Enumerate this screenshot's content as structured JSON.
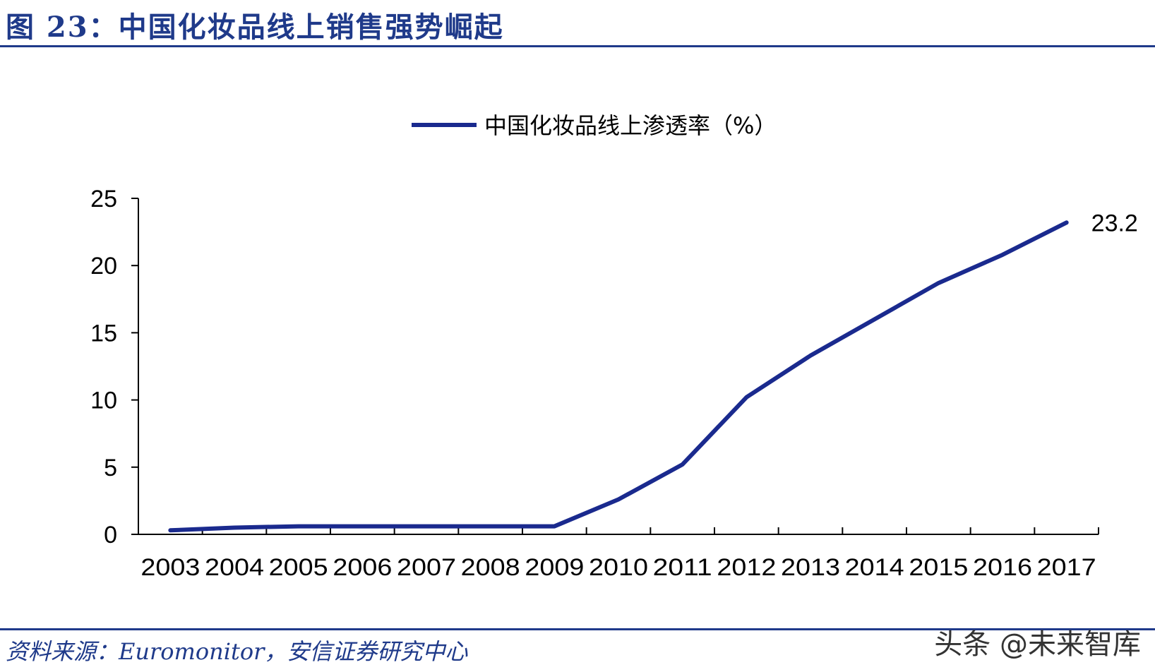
{
  "header": {
    "figure_title": "图 23：中国化妆品线上销售强势崛起"
  },
  "footer": {
    "source": "资料来源：Euromonitor，安信证券研究中心",
    "watermark": "头条 @未来智库"
  },
  "colors": {
    "accent": "#1f3a8a",
    "series": "#1a2a8e"
  },
  "chart_data": {
    "type": "line",
    "title": "",
    "xlabel": "",
    "ylabel": "",
    "legend_position": "top",
    "grid": false,
    "x": [
      "2003",
      "2004",
      "2005",
      "2006",
      "2007",
      "2008",
      "2009",
      "2010",
      "2011",
      "2012",
      "2013",
      "2014",
      "2015",
      "2016",
      "2017"
    ],
    "ylim": [
      0,
      25
    ],
    "yticks": [
      0,
      5,
      10,
      15,
      20,
      25
    ],
    "series": [
      {
        "name": "中国化妆品线上渗透率（%）",
        "values": [
          0.3,
          0.5,
          0.6,
          0.6,
          0.6,
          0.6,
          0.6,
          2.6,
          5.2,
          10.2,
          13.3,
          16.0,
          18.7,
          20.8,
          23.2
        ]
      }
    ],
    "annotations": [
      {
        "x": "2017",
        "text": "23.2"
      }
    ]
  }
}
